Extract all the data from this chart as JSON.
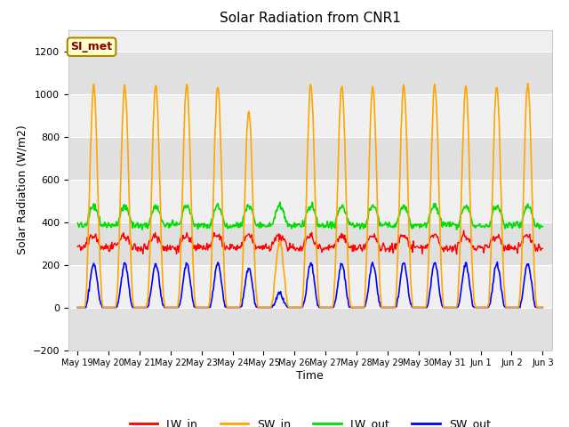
{
  "title": "Solar Radiation from CNR1",
  "xlabel": "Time",
  "ylabel": "Solar Radiation (W/m2)",
  "ylim": [
    -200,
    1300
  ],
  "yticks": [
    -200,
    0,
    200,
    400,
    600,
    800,
    1000,
    1200
  ],
  "num_days": 15,
  "annotation_text": "SI_met",
  "annotation_bg": "#ffffcc",
  "annotation_border": "#aa8800",
  "annotation_text_color": "#880000",
  "line_colors": {
    "LW_in": "#ff0000",
    "SW_in": "#ffa500",
    "LW_out": "#00dd00",
    "SW_out": "#0000ff"
  },
  "fig_bg": "#ffffff",
  "plot_bg_light": "#f0f0f0",
  "plot_bg_dark": "#e0e0e0",
  "x_labels": [
    "May 19",
    "May 20",
    "May 21",
    "May 22",
    "May 23",
    "May 24",
    "May 25",
    "May 26",
    "May 27",
    "May 28",
    "May 29",
    "May 30",
    "May 31",
    "Jun 1",
    "Jun 2",
    "Jun 3"
  ],
  "figsize": [
    6.4,
    4.8
  ],
  "dpi": 100
}
